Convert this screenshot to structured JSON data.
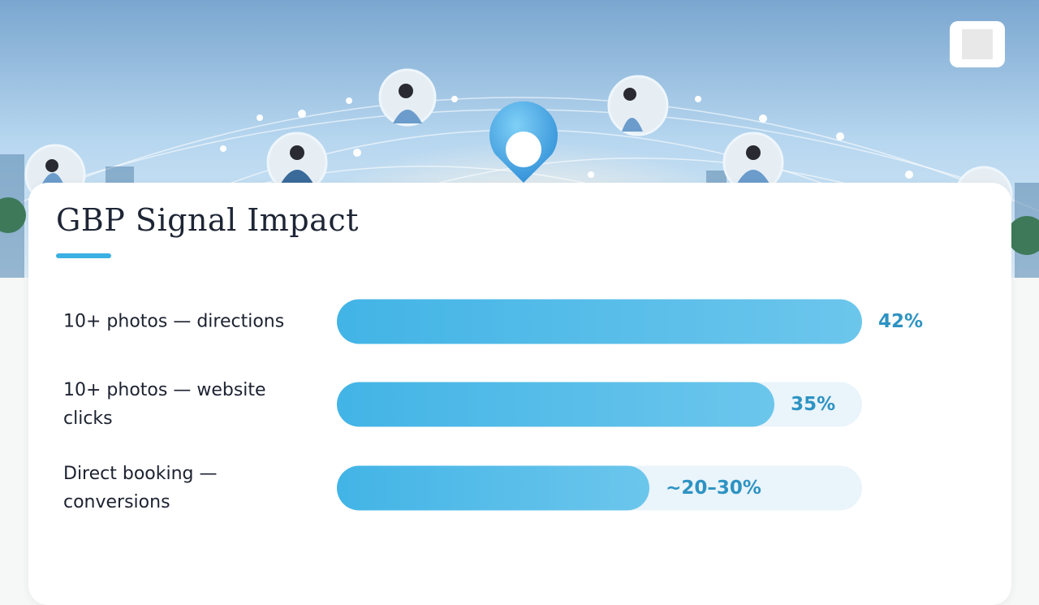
{
  "chart_data": {
    "type": "bar",
    "orientation": "horizontal",
    "title": "GBP Signal Impact",
    "categories": [
      "10+ photos — directions",
      "10+ photos — website clicks",
      "Direct booking — conversions"
    ],
    "values": [
      42,
      35,
      25
    ],
    "value_labels": [
      "42%",
      "35%",
      "~20–30%"
    ],
    "color": "#42b4e6"
  }
}
